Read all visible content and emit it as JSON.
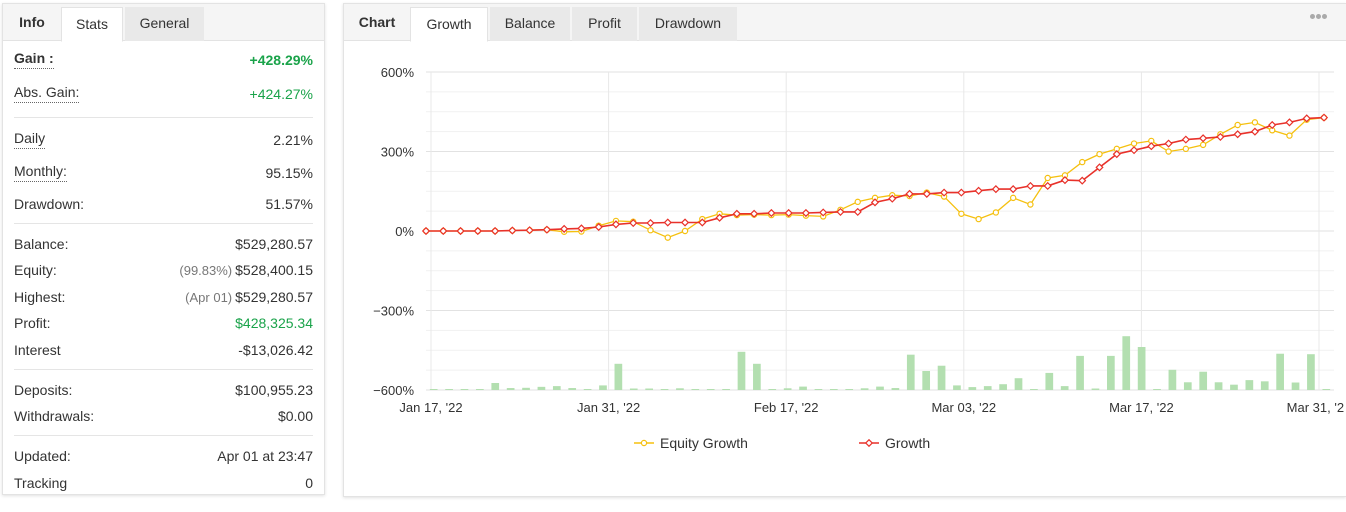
{
  "left_tabs": [
    {
      "label": "Info"
    },
    {
      "label": "Stats"
    },
    {
      "label": "General"
    }
  ],
  "stats": {
    "gain": {
      "label": "Gain :",
      "value": "+428.29%"
    },
    "abs_gain": {
      "label": "Abs. Gain:",
      "value": "+424.27%"
    },
    "daily": {
      "label": "Daily",
      "value": "2.21%"
    },
    "monthly": {
      "label": "Monthly:",
      "value": "95.15%"
    },
    "drawdown": {
      "label": "Drawdown:",
      "value": "51.57%"
    },
    "balance": {
      "label": "Balance:",
      "value": "$529,280.57"
    },
    "equity": {
      "label": "Equity:",
      "note": "(99.83%)",
      "value": "$528,400.15"
    },
    "highest": {
      "label": "Highest:",
      "note": "(Apr 01)",
      "value": "$529,280.57"
    },
    "profit": {
      "label": "Profit:",
      "value": "$428,325.34"
    },
    "interest": {
      "label": "Interest",
      "value": "-$13,026.42"
    },
    "deposits": {
      "label": "Deposits:",
      "value": "$100,955.23"
    },
    "withdrawals": {
      "label": "Withdrawals:",
      "value": "$0.00"
    },
    "updated": {
      "label": "Updated:",
      "value": "Apr 01 at 23:47"
    },
    "tracking": {
      "label": "Tracking",
      "value": "0"
    }
  },
  "right_tabs": [
    {
      "label": "Chart"
    },
    {
      "label": "Growth"
    },
    {
      "label": "Balance"
    },
    {
      "label": "Profit"
    },
    {
      "label": "Drawdown"
    }
  ],
  "more_menu_icon": "more-dots-icon",
  "colors": {
    "equity_growth": "#f5c00f",
    "growth": "#e8312a",
    "bars": "#b3dfb0",
    "gain_positive": "#1aa34a"
  },
  "chart_data": {
    "type": "line",
    "x_labels": [
      "Jan 17, '22",
      "Jan 31, '22",
      "Feb 17, '22",
      "Mar 03, '22",
      "Mar 17, '22",
      "Mar 31, '22"
    ],
    "y_tick_labels": [
      "600%",
      "300%",
      "0%",
      "−300%",
      "−600%"
    ],
    "ylim": [
      -600,
      600
    ],
    "grid": true,
    "legend_position": "bottom",
    "series": [
      {
        "name": "Equity Growth",
        "values": [
          0,
          0,
          0,
          0,
          0,
          2,
          3,
          5,
          -3,
          -2,
          20,
          38,
          35,
          3,
          -25,
          0,
          45,
          65,
          60,
          62,
          60,
          62,
          58,
          55,
          80,
          110,
          125,
          135,
          132,
          145,
          130,
          65,
          45,
          70,
          125,
          100,
          200,
          210,
          260,
          290,
          310,
          330,
          340,
          300,
          310,
          325,
          365,
          400,
          410,
          380,
          360,
          420,
          428
        ]
      },
      {
        "name": "Growth",
        "values": [
          0,
          0,
          0,
          0,
          0,
          2,
          3,
          5,
          8,
          10,
          15,
          25,
          30,
          30,
          32,
          32,
          32,
          50,
          65,
          65,
          68,
          68,
          68,
          70,
          72,
          72,
          108,
          122,
          140,
          140,
          145,
          145,
          152,
          158,
          158,
          170,
          170,
          192,
          190,
          240,
          290,
          305,
          320,
          330,
          345,
          350,
          355,
          365,
          375,
          400,
          410,
          425,
          428
        ]
      }
    ],
    "bars": [
      0,
      0,
      0,
      0,
      25,
      4,
      5,
      9,
      12,
      4,
      0,
      15,
      105,
      2,
      2,
      0,
      3,
      0,
      0,
      0,
      155,
      105,
      0,
      3,
      10,
      0,
      0,
      0,
      3,
      10,
      4,
      143,
      75,
      97,
      15,
      8,
      12,
      20,
      45,
      0,
      67,
      12,
      138,
      2,
      138,
      220,
      175,
      0,
      80,
      28,
      72,
      28,
      18,
      37,
      32,
      147,
      27,
      145,
      0
    ]
  }
}
